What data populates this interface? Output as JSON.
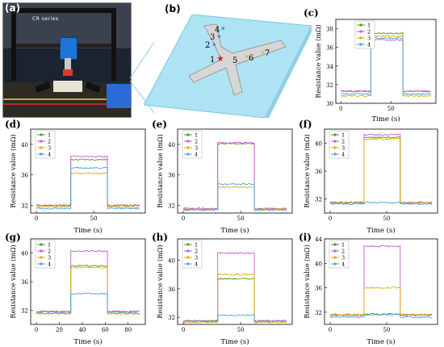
{
  "panel_labels": {
    "a": "(a)",
    "b": "(b)",
    "c": "(c)",
    "d": "(d)",
    "e": "(e)",
    "f": "(f)",
    "g": "(g)",
    "h": "(h)",
    "i": "(i)"
  },
  "photo": {
    "brand_main": "CR",
    "brand_sub": " series"
  },
  "schematic": {
    "points": [
      "1",
      "2",
      "3",
      "4",
      "5",
      "6",
      "7"
    ]
  },
  "colors": {
    "s1": "#5a9a18",
    "s2": "#c75bd2",
    "s3": "#e0b000",
    "s4": "#4da3e0"
  },
  "chart_data": [
    {
      "panel": "(c)",
      "type": "line",
      "xlabel": "Time (s)",
      "ylabel": "Resistance value (mΩ)",
      "xlim": [
        -5,
        95
      ],
      "ylim": [
        30,
        39
      ],
      "xticks": [
        0,
        50
      ],
      "yticks": [
        30,
        32,
        34,
        36,
        38
      ],
      "step_on": 30,
      "step_off": 62,
      "series": [
        {
          "name": "1",
          "low": 31.3,
          "high": 37.5
        },
        {
          "name": "2",
          "low": 31.3,
          "high": 36.8
        },
        {
          "name": "3",
          "low": 30.8,
          "high": 37.2
        },
        {
          "name": "4",
          "low": 31.0,
          "high": 37.0
        }
      ]
    },
    {
      "panel": "(d)",
      "type": "line",
      "xlabel": "Time (s)",
      "ylabel": "Resistance value (mΩ)",
      "xlim": [
        -5,
        95
      ],
      "ylim": [
        31,
        42
      ],
      "xticks": [
        0,
        50
      ],
      "yticks": [
        32,
        36,
        40
      ],
      "step_on": 30,
      "step_off": 62,
      "series": [
        {
          "name": "1",
          "low": 32.0,
          "high": 38.0
        },
        {
          "name": "2",
          "low": 32.0,
          "high": 38.4
        },
        {
          "name": "3",
          "low": 31.8,
          "high": 36.2
        },
        {
          "name": "4",
          "low": 31.6,
          "high": 36.9
        }
      ]
    },
    {
      "panel": "(e)",
      "type": "line",
      "xlabel": "Time (s)",
      "ylabel": "Resistance value (mΩ)",
      "xlim": [
        -5,
        95
      ],
      "ylim": [
        31,
        42
      ],
      "xticks": [
        0,
        50
      ],
      "yticks": [
        32,
        36,
        40
      ],
      "step_on": 30,
      "step_off": 62,
      "series": [
        {
          "name": "1",
          "low": 31.5,
          "high": 40.1
        },
        {
          "name": "2",
          "low": 31.6,
          "high": 40.2
        },
        {
          "name": "3",
          "low": 31.5,
          "high": 34.4
        },
        {
          "name": "4",
          "low": 31.4,
          "high": 34.8
        }
      ]
    },
    {
      "panel": "(f)",
      "type": "line",
      "xlabel": "Time (s)",
      "ylabel": "Resistance value (mΩ)",
      "xlim": [
        -5,
        95
      ],
      "ylim": [
        30,
        42
      ],
      "xticks": [
        0,
        50
      ],
      "yticks": [
        32,
        36,
        40
      ],
      "step_on": 30,
      "step_off": 62,
      "series": [
        {
          "name": "1",
          "low": 31.5,
          "high": 40.8
        },
        {
          "name": "2",
          "low": 31.5,
          "high": 41.2
        },
        {
          "name": "3",
          "low": 31.4,
          "high": 40.6
        },
        {
          "name": "4",
          "low": 31.3,
          "high": 31.5
        }
      ]
    },
    {
      "panel": "(g)",
      "type": "line",
      "xlabel": "Time (s)",
      "ylabel": "Resistance value (mΩ)",
      "xlim": [
        -5,
        95
      ],
      "ylim": [
        30,
        42
      ],
      "xticks": [
        0,
        20,
        40,
        60,
        80
      ],
      "yticks": [
        32,
        36,
        40
      ],
      "step_on": 30,
      "step_off": 62,
      "series": [
        {
          "name": "1",
          "low": 31.8,
          "high": 38.2
        },
        {
          "name": "2",
          "low": 31.8,
          "high": 40.3
        },
        {
          "name": "3",
          "low": 31.5,
          "high": 38.0
        },
        {
          "name": "4",
          "low": 31.6,
          "high": 34.3
        }
      ]
    },
    {
      "panel": "(h)",
      "type": "line",
      "xlabel": "Time (s)",
      "ylabel": "Resistance value (mΩ)",
      "xlim": [
        -5,
        95
      ],
      "ylim": [
        31,
        43
      ],
      "xticks": [
        0,
        50
      ],
      "yticks": [
        32,
        36,
        40
      ],
      "step_on": 30,
      "step_off": 62,
      "series": [
        {
          "name": "1",
          "low": 31.5,
          "high": 37.4
        },
        {
          "name": "2",
          "low": 31.5,
          "high": 41.0
        },
        {
          "name": "3",
          "low": 31.3,
          "high": 38.0
        },
        {
          "name": "4",
          "low": 31.4,
          "high": 32.3
        }
      ]
    },
    {
      "panel": "(i)",
      "type": "line",
      "xlabel": "Time (s)",
      "ylabel": "Resistance value (mΩ)",
      "xlim": [
        -5,
        95
      ],
      "ylim": [
        30,
        44
      ],
      "xticks": [
        0,
        50
      ],
      "yticks": [
        32,
        36,
        40,
        44
      ],
      "step_on": 30,
      "step_off": 62,
      "series": [
        {
          "name": "1",
          "low": 31.6,
          "high": 31.7
        },
        {
          "name": "2",
          "low": 31.5,
          "high": 42.8
        },
        {
          "name": "3",
          "low": 31.6,
          "high": 36.0
        },
        {
          "name": "4",
          "low": 31.2,
          "high": 31.6
        }
      ]
    }
  ]
}
